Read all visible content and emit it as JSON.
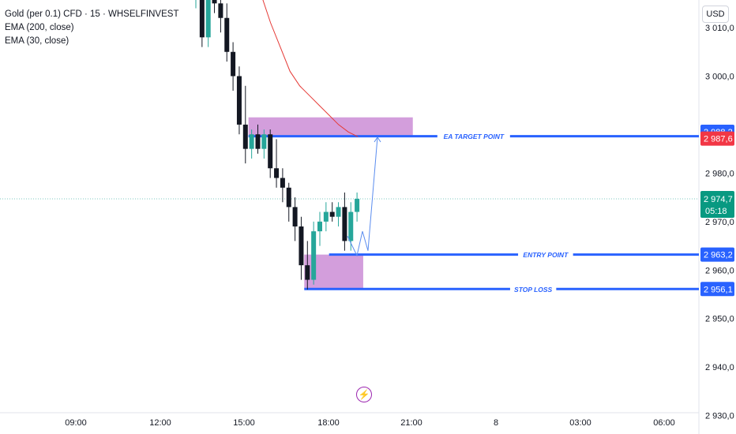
{
  "legend": {
    "title": "Gold (per 0.1) CFD · 15 · WHSELFINVEST",
    "ema200": "EMA (200, close)",
    "ema30": "EMA (30, close)"
  },
  "currency_button": "USD",
  "lightning_icon": "⚡",
  "chart_data": {
    "type": "candlestick",
    "x_ticks": [
      "09:00",
      "12:00",
      "15:00",
      "18:00",
      "21:00",
      "8",
      "03:00",
      "06:00"
    ],
    "y_ticks": [
      3010,
      3000,
      2980,
      2970,
      2960,
      2950,
      2940,
      2930
    ],
    "y_tick_labels": [
      "3 010,0",
      "3 000,0",
      "2 980,0",
      "2 970,0",
      "2 960,0",
      "2 950,0",
      "2 940,0",
      "2 930,0"
    ],
    "ylim": [
      2926.2,
      3015.7
    ],
    "candles": [
      {
        "o": 3018,
        "h": 3022,
        "l": 3014,
        "c": 3020
      },
      {
        "o": 3020,
        "h": 3022,
        "l": 3006,
        "c": 3008
      },
      {
        "o": 3008,
        "h": 3021,
        "l": 3006,
        "c": 3019
      },
      {
        "o": 3019,
        "h": 3022,
        "l": 3013,
        "c": 3015
      },
      {
        "o": 3015,
        "h": 3017,
        "l": 3009,
        "c": 3012
      },
      {
        "o": 3012,
        "h": 3015,
        "l": 3003,
        "c": 3005
      },
      {
        "o": 3005,
        "h": 3007,
        "l": 2997,
        "c": 3000
      },
      {
        "o": 3000,
        "h": 3002,
        "l": 2988,
        "c": 2990
      },
      {
        "o": 2990,
        "h": 2998,
        "l": 2982,
        "c": 2985
      },
      {
        "o": 2985,
        "h": 2989,
        "l": 2983,
        "c": 2988
      },
      {
        "o": 2988,
        "h": 2990,
        "l": 2984,
        "c": 2985
      },
      {
        "o": 2985,
        "h": 2989,
        "l": 2983,
        "c": 2988
      },
      {
        "o": 2988,
        "h": 2989,
        "l": 2979,
        "c": 2981
      },
      {
        "o": 2981,
        "h": 2987,
        "l": 2977,
        "c": 2979
      },
      {
        "o": 2979,
        "h": 2981,
        "l": 2974,
        "c": 2977
      },
      {
        "o": 2977,
        "h": 2978,
        "l": 2970,
        "c": 2973
      },
      {
        "o": 2973,
        "h": 2975,
        "l": 2966,
        "c": 2969
      },
      {
        "o": 2969,
        "h": 2971,
        "l": 2958,
        "c": 2961
      },
      {
        "o": 2961,
        "h": 2966,
        "l": 2956,
        "c": 2958
      },
      {
        "o": 2958,
        "h": 2970,
        "l": 2957,
        "c": 2968
      },
      {
        "o": 2968,
        "h": 2972,
        "l": 2965,
        "c": 2970
      },
      {
        "o": 2970,
        "h": 2974,
        "l": 2968,
        "c": 2972
      },
      {
        "o": 2972,
        "h": 2974,
        "l": 2970,
        "c": 2971
      },
      {
        "o": 2971,
        "h": 2974,
        "l": 2969,
        "c": 2973
      },
      {
        "o": 2973,
        "h": 2976,
        "l": 2964,
        "c": 2966
      },
      {
        "o": 2966,
        "h": 2974,
        "l": 2964,
        "c": 2972
      },
      {
        "o": 2972,
        "h": 2976,
        "l": 2970,
        "c": 2974.7
      }
    ],
    "ema": [
      3023,
      3017,
      3011,
      3006,
      3001,
      2998,
      2996,
      2994,
      2992,
      2990,
      2988.5,
      2987.5
    ],
    "zones": [
      {
        "from_candle": 9,
        "to_candle": 35,
        "y_top": 2991.5,
        "y_bottom": 2987.8
      },
      {
        "from_candle": 18,
        "to_candle": 27,
        "y_top": 2963.2,
        "y_bottom": 2956.1
      }
    ],
    "levels": [
      {
        "label": "EA TARGET POINT",
        "value": 2987.6,
        "tag": "2 988,2",
        "tag2": "2 987,6",
        "from_candle": 9
      },
      {
        "label": "ENTRY POINT",
        "value": 2963.2,
        "tag": "2 963,2",
        "from_candle": 22
      },
      {
        "label": "STOP LOSS",
        "value": 2956.1,
        "tag": "2 956,1",
        "from_candle": 18
      }
    ],
    "current_price": {
      "value": 2974.7,
      "label": "2 974,7",
      "countdown": "05:18"
    },
    "projection_path": [
      2967,
      2963,
      2968,
      2964,
      2987.4
    ],
    "colors": {
      "up": "#26a69a",
      "down": "#131722",
      "ema": "#e53935",
      "zone": "#ce93d8",
      "level": "#2962ff",
      "price_tag": "#089981",
      "target_tag_red": "#f23645"
    }
  }
}
